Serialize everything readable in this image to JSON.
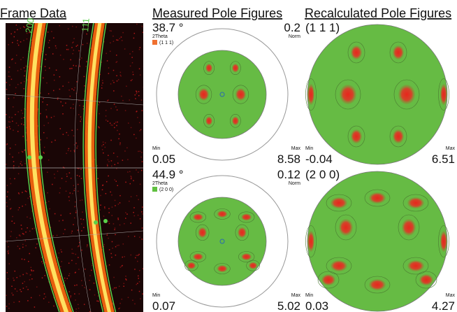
{
  "frame_data": {
    "title": "Frame Data",
    "ring_labels": [
      "200",
      "111"
    ]
  },
  "measured": {
    "title": "Measured Pole Figures",
    "panels": [
      {
        "angle": "38.7 °",
        "axis_label": "2Theta",
        "legend": "(1 1 1)",
        "norm": "0.2",
        "norm_label": "Norm",
        "min_label": "Min",
        "min": "0.05",
        "max_label": "Max",
        "max": "8.58"
      },
      {
        "angle": "44.9 °",
        "axis_label": "2Theta",
        "legend": "(2 0 0)",
        "norm": "0.12",
        "norm_label": "Norm",
        "min_label": "Min",
        "min": "0.07",
        "max_label": "Max",
        "max": "5.02"
      }
    ]
  },
  "recalculated": {
    "title": "Recalculated Pole Figures",
    "panels": [
      {
        "label": "(1 1 1)",
        "min_label": "Min",
        "min": "-0.04",
        "max_label": "Max",
        "max": "6.51"
      },
      {
        "label": "(2 0 0)",
        "min_label": "Min",
        "min": "0.03",
        "max_label": "Max",
        "max": "4.27"
      }
    ]
  }
}
